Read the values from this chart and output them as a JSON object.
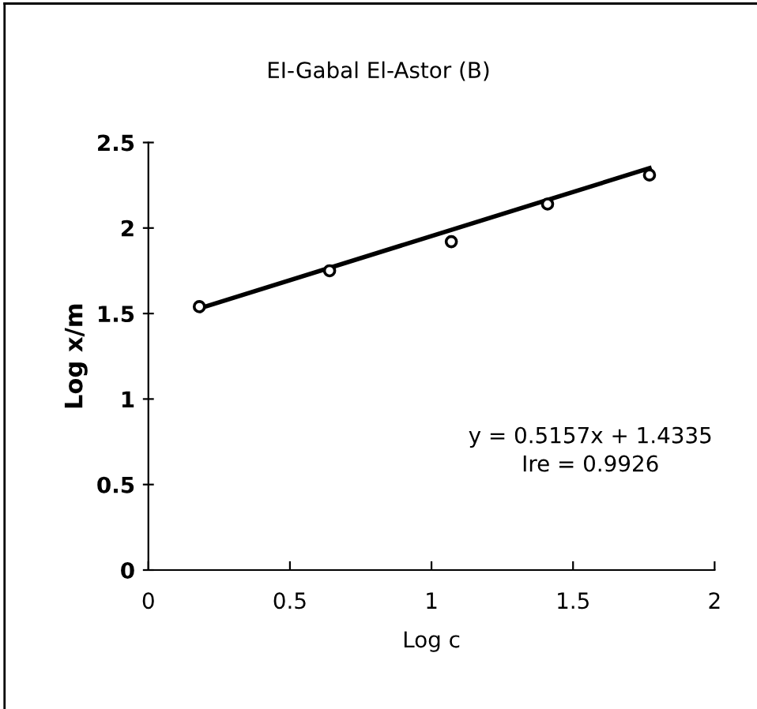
{
  "chart_data": {
    "type": "scatter",
    "title": "EI-Gabal El-Astor (B)",
    "xlabel": "Log c",
    "ylabel": "Log x/m",
    "series": [
      {
        "color": "#000000",
        "marker": "circle",
        "x": [
          0.18,
          0.64,
          1.07,
          1.41,
          1.77
        ],
        "values": [
          1.54,
          1.75,
          1.92,
          2.14,
          2.31
        ]
      },
      {
        "type": "line",
        "color": "#000000",
        "marker": "none",
        "x": [
          0.18,
          1.77
        ],
        "values": [
          1.53,
          2.35
        ]
      }
    ],
    "xlim": [
      0,
      2
    ],
    "ylim": [
      0,
      2.5
    ],
    "xticks": [
      0,
      0.5,
      1,
      1.5,
      2
    ],
    "yticks": [
      0,
      0.5,
      1,
      1.5,
      2,
      2.5
    ],
    "grid": false,
    "legend": false,
    "annotations": [
      "y = 0.5157x + 1.4335",
      "Ire = 0.9926"
    ]
  }
}
